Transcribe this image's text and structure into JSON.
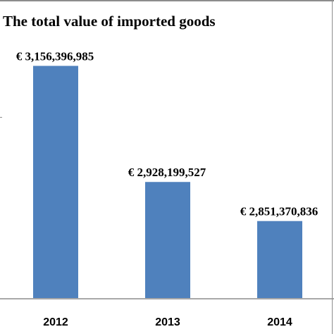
{
  "chart_data": {
    "type": "bar",
    "title": "The total value of imported goods",
    "categories": [
      "2012",
      "2013",
      "2014"
    ],
    "values": [
      3156396985,
      2928199527,
      2851370836
    ],
    "data_labels": [
      "€ 3,156,396,985",
      "€ 2,928,199,527",
      "€ 2,851,370,836"
    ],
    "xlabel": "",
    "ylabel": "",
    "ylim": [
      2700000000,
      3200000000
    ],
    "grid": false,
    "legend": "none",
    "bar_color": "#4f81bd"
  }
}
